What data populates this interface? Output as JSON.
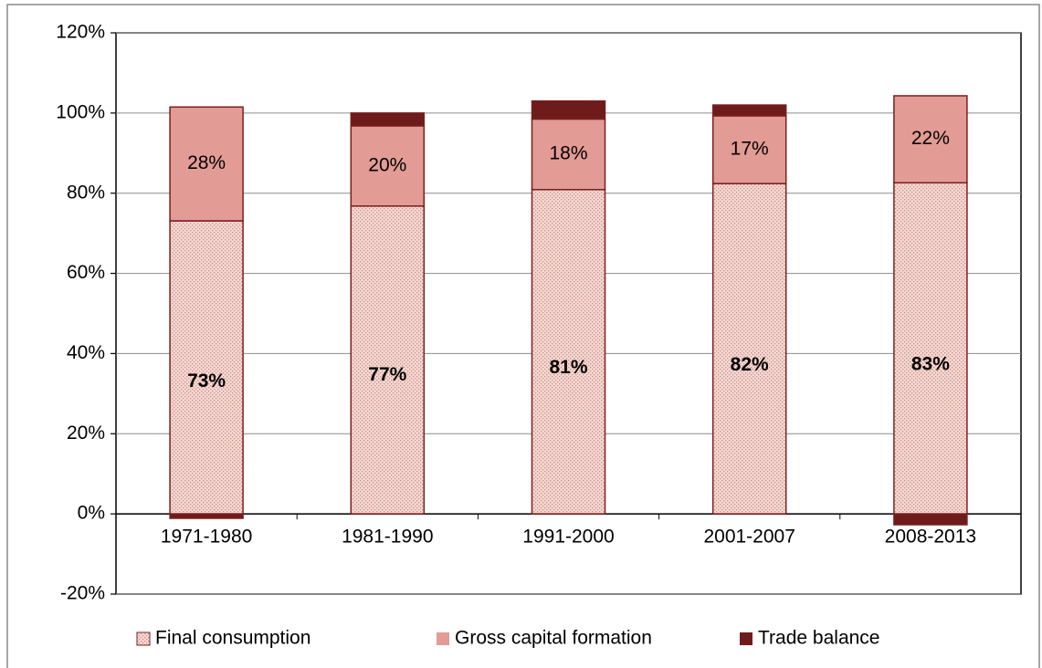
{
  "chart_data": {
    "type": "stacked_bar",
    "categories": [
      "1971-1980",
      "1981-1990",
      "1991-2000",
      "2001-2007",
      "2008-2013"
    ],
    "series": [
      {
        "name": "Final consumption",
        "color": "#f2c4bd",
        "values": [
          73.1,
          76.8,
          80.9,
          82.4,
          82.6
        ],
        "value_labels": [
          "73%",
          "77%",
          "81%",
          "82%",
          "83%"
        ]
      },
      {
        "name": "Gross capital formation",
        "color": "#e39b95",
        "values": [
          28.4,
          20.0,
          17.6,
          16.9,
          21.7
        ],
        "value_labels": [
          "28%",
          "20%",
          "18%",
          "17%",
          "22%"
        ]
      },
      {
        "name": "Trade balance",
        "color": "#6e1c1b",
        "values": [
          -1.1,
          3.2,
          4.5,
          2.7,
          -2.7
        ]
      }
    ],
    "ylim": [
      -20,
      120
    ],
    "yticks": [
      {
        "value": -20,
        "label": "-20%"
      },
      {
        "value": 0,
        "label": "0%"
      },
      {
        "value": 20,
        "label": "20%"
      },
      {
        "value": 40,
        "label": "40%"
      },
      {
        "value": 60,
        "label": "60%"
      },
      {
        "value": 80,
        "label": "80%"
      },
      {
        "value": 100,
        "label": "100%"
      },
      {
        "value": 120,
        "label": "120%"
      }
    ],
    "grid": true
  }
}
